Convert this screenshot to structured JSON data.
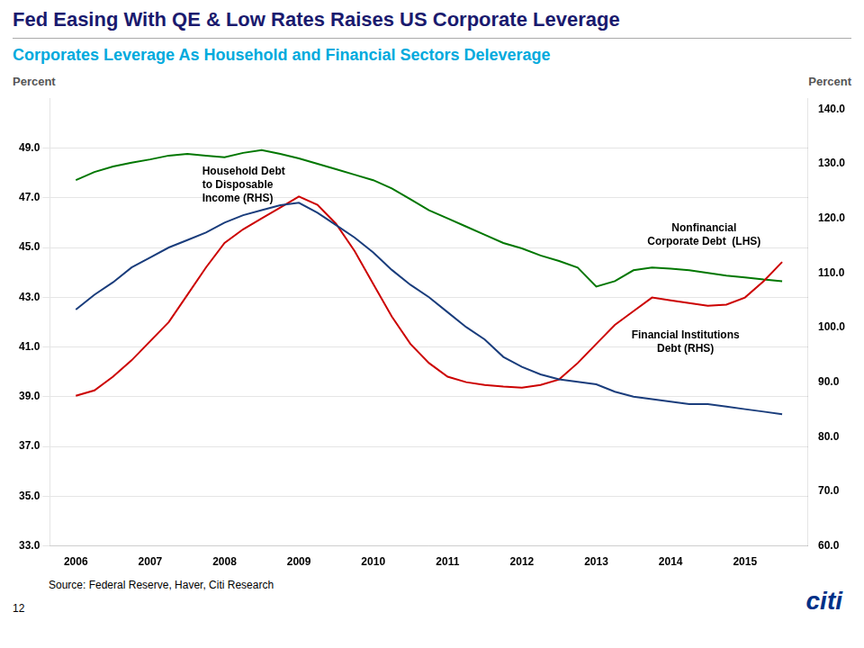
{
  "chart_data": {
    "type": "line",
    "title": "Fed Easing With QE & Low Rates Raises US Corporate Leverage",
    "subtitle": "Corporates Leverage As Household and Financial Sectors Deleverage",
    "y_label": "Percent",
    "y2_label": "Percent",
    "source": "Source: Federal Reserve, Haver, Citi Research",
    "page_number": "12",
    "logo": "citi",
    "x": [
      2006.0,
      2006.25,
      2006.5,
      2006.75,
      2007.0,
      2007.25,
      2007.5,
      2007.75,
      2008.0,
      2008.25,
      2008.5,
      2008.75,
      2009.0,
      2009.25,
      2009.5,
      2009.75,
      2010.0,
      2010.25,
      2010.5,
      2010.75,
      2011.0,
      2011.25,
      2011.5,
      2011.75,
      2012.0,
      2012.25,
      2012.5,
      2012.75,
      2013.0,
      2013.25,
      2013.5,
      2013.75,
      2014.0,
      2014.25,
      2014.5,
      2014.75,
      2015.0,
      2015.25,
      2015.5
    ],
    "xlim": [
      2005.65,
      2015.85
    ],
    "xticks": [
      2006,
      2007,
      2008,
      2009,
      2010,
      2011,
      2012,
      2013,
      2014,
      2015
    ],
    "ylim": [
      33.0,
      51.0
    ],
    "yticks": [
      {
        "value": 33.0,
        "label": "33.0"
      },
      {
        "value": 35.0,
        "label": "35.0"
      },
      {
        "value": 37.0,
        "label": "37.0"
      },
      {
        "value": 39.0,
        "label": "39.0"
      },
      {
        "value": 41.0,
        "label": "41.0"
      },
      {
        "value": 43.0,
        "label": "43.0"
      },
      {
        "value": 45.0,
        "label": "45.0"
      },
      {
        "value": 47.0,
        "label": "47.0"
      },
      {
        "value": 49.0,
        "label": "49.0"
      }
    ],
    "y2lim": [
      60.0,
      142.0
    ],
    "y2ticks": [
      {
        "value": 60.0,
        "label": "60.0"
      },
      {
        "value": 70.0,
        "label": "70.0"
      },
      {
        "value": 80.0,
        "label": "80.0"
      },
      {
        "value": 90.0,
        "label": "90.0"
      },
      {
        "value": 100.0,
        "label": "100.0"
      },
      {
        "value": 110.0,
        "label": "110.0"
      },
      {
        "value": 120.0,
        "label": "120.0"
      },
      {
        "value": 130.0,
        "label": "130.0"
      },
      {
        "value": 140.0,
        "label": "140.0"
      }
    ],
    "grid": "y",
    "series": [
      {
        "color": "#1a3d7c",
        "axis": "y",
        "values": [
          42.5,
          43.1,
          43.6,
          44.2,
          44.6,
          45.0,
          45.3,
          45.6,
          46.0,
          46.3,
          46.5,
          46.7,
          46.8,
          46.4,
          45.9,
          45.4,
          44.8,
          44.1,
          43.5,
          43.0,
          42.4,
          41.8,
          41.3,
          40.6,
          40.2,
          39.9,
          39.7,
          39.6,
          39.5,
          39.2,
          39.0,
          38.9,
          38.8,
          38.7,
          38.7,
          38.6,
          38.5,
          38.4,
          38.3
        ]
      },
      {
        "color": "#cc0000",
        "axis": "y2",
        "values": [
          87.5,
          88.5,
          91.0,
          94.0,
          97.5,
          101.0,
          106.0,
          111.0,
          115.5,
          118.0,
          120.0,
          122.0,
          124.0,
          122.5,
          119.0,
          114.0,
          108.0,
          102.0,
          97.0,
          93.5,
          91.0,
          90.0,
          89.5,
          89.2,
          89.0,
          89.5,
          90.5,
          93.5,
          97.0,
          100.5,
          103.0,
          105.5,
          105.0,
          104.5,
          104.0,
          104.2,
          105.5,
          108.5,
          112.0
        ]
      },
      {
        "color": "#007700",
        "axis": "y2",
        "values": [
          127.0,
          128.5,
          129.5,
          130.2,
          130.8,
          131.5,
          131.8,
          131.5,
          131.2,
          132.0,
          132.5,
          131.8,
          131.0,
          130.0,
          129.0,
          128.0,
          127.0,
          125.5,
          123.5,
          121.5,
          120.0,
          118.5,
          117.0,
          115.5,
          114.5,
          113.2,
          112.2,
          111.0,
          107.5,
          108.5,
          110.5,
          111.0,
          110.8,
          110.5,
          110.0,
          109.5,
          109.2,
          108.8,
          108.5
        ]
      }
    ],
    "annotations": [
      {
        "text": "Household Debt\nto Disposable\nIncome (RHS)",
        "x": 2007.7,
        "y": 47.5,
        "align": "left"
      },
      {
        "text": "Nonfinancial\nCorporate Debt  (LHS)",
        "x": 2014.45,
        "y": 45.5,
        "align": "center"
      },
      {
        "text": "Financial Institutions\nDebt (RHS)",
        "x": 2014.2,
        "y": 41.2,
        "align": "center"
      }
    ]
  }
}
